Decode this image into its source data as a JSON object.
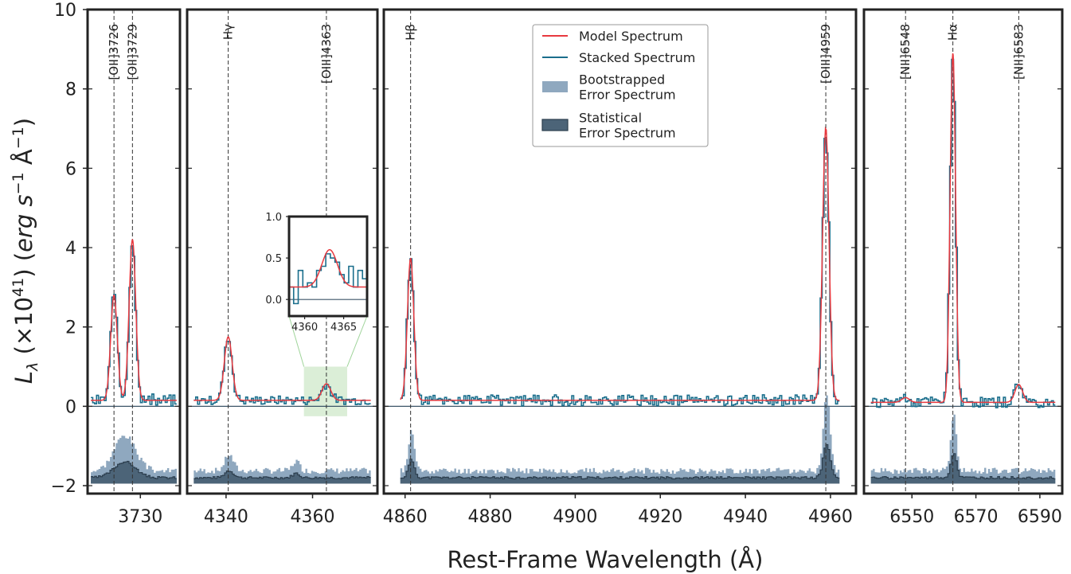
{
  "chart_data": {
    "type": "line",
    "ylabel": "L_λ (×10^41) (erg s^-1 Å^-1)",
    "ylabel_parts": {
      "main": "L",
      "sub": "λ",
      "mid": " (×10",
      "exp1": "41",
      "tail": ") (",
      "unit": "erg s",
      "exp2": "−1",
      "ang": " Å",
      "exp3": "−1",
      "close": ")"
    },
    "xlabel": "Rest-Frame Wavelength (Å)",
    "ylim": [
      -2.2,
      10
    ],
    "yticks": [
      -2,
      0,
      2,
      4,
      6,
      8,
      10
    ],
    "ytick_labels": [
      "−2",
      "0",
      "2",
      "4",
      "6",
      "8",
      "10"
    ],
    "colors": {
      "model": "#e8393f",
      "stacked": "#1a6e8c",
      "bootstrap": "#8fa8bf",
      "statistical": "#4c6478",
      "zero": "#3d5568",
      "frame": "#222222",
      "inset_region": "#cfe8c9"
    },
    "legend": [
      {
        "label_lines": [
          "Model Spectrum"
        ],
        "kind": "line",
        "color": "#e8393f"
      },
      {
        "label_lines": [
          "Stacked Spectrum"
        ],
        "kind": "line",
        "color": "#1a6e8c"
      },
      {
        "label_lines": [
          "Bootstrapped",
          "Error Spectrum"
        ],
        "kind": "patch",
        "color": "#8fa8bf"
      },
      {
        "label_lines": [
          "Statistical",
          "Error Spectrum"
        ],
        "kind": "patch",
        "color": "#4c6478"
      }
    ],
    "panels": [
      {
        "xlim": [
          3722,
          3736
        ],
        "xticks": [
          3730
        ],
        "lines": [
          {
            "label": "[OII]3726",
            "x": 3726.0
          },
          {
            "label": "[OII]3729",
            "x": 3728.8
          }
        ],
        "baseline": 0.15,
        "gaussians": [
          {
            "center": 3726.0,
            "amp": 2.65,
            "sigma": 0.5
          },
          {
            "center": 3728.8,
            "amp": 4.05,
            "sigma": 0.5
          }
        ],
        "noise": 0.2,
        "seed": 3,
        "err_peak": [
          {
            "center": 3727.5,
            "amp": 0.9,
            "sigma": 1.6
          }
        ]
      },
      {
        "xlim": [
          4331,
          4375
        ],
        "xticks": [
          4340,
          4360
        ],
        "lines": [
          {
            "label": "Hγ",
            "x": 4340.5
          },
          {
            "label": "[OIII]4363",
            "x": 4363.2
          }
        ],
        "baseline": 0.15,
        "gaussians": [
          {
            "center": 4340.5,
            "amp": 1.6,
            "sigma": 0.9
          },
          {
            "center": 4363.2,
            "amp": 0.42,
            "sigma": 1.0
          }
        ],
        "noise": 0.14,
        "seed": 7,
        "err_peak": [
          {
            "center": 4340.5,
            "amp": 0.4,
            "sigma": 1.0
          },
          {
            "center": 4356.0,
            "amp": 0.25,
            "sigma": 0.8
          }
        ],
        "inset_region": {
          "x": [
            4358,
            4368
          ],
          "y": [
            -0.25,
            1.0
          ]
        }
      },
      {
        "xlim": [
          4855,
          4966
        ],
        "xticks": [
          4860,
          4880,
          4900,
          4920,
          4940,
          4960
        ],
        "lines": [
          {
            "label": "Hβ",
            "x": 4861.3
          },
          {
            "label": "[OIII]4959",
            "x": 4958.9
          }
        ],
        "baseline": 0.15,
        "gaussians": [
          {
            "center": 4861.3,
            "amp": 3.6,
            "sigma": 0.75
          },
          {
            "center": 4958.9,
            "amp": 6.9,
            "sigma": 0.75
          }
        ],
        "noise": 0.17,
        "seed": 11,
        "err_peak": [
          {
            "center": 4861.3,
            "amp": 1.0,
            "sigma": 0.7
          },
          {
            "center": 4958.9,
            "amp": 1.9,
            "sigma": 0.8
          }
        ]
      },
      {
        "xlim": [
          6535,
          6597
        ],
        "xticks": [
          6550,
          6570,
          6590
        ],
        "lines": [
          {
            "label": "[NII]6548",
            "x": 6548.0
          },
          {
            "label": "Hα",
            "x": 6562.8
          },
          {
            "label": "[NII]6583",
            "x": 6583.4
          }
        ],
        "baseline": 0.1,
        "gaussians": [
          {
            "center": 6548.0,
            "amp": 0.12,
            "sigma": 1.2
          },
          {
            "center": 6562.8,
            "amp": 8.8,
            "sigma": 0.85
          },
          {
            "center": 6583.4,
            "amp": 0.45,
            "sigma": 1.2
          }
        ],
        "noise": 0.17,
        "seed": 19,
        "err_peak": [
          {
            "center": 6562.8,
            "amp": 1.4,
            "sigma": 0.9
          }
        ]
      }
    ],
    "inset": {
      "xlim": [
        4358,
        4368
      ],
      "ylim": [
        -0.2,
        1.0
      ],
      "xticks": [
        4360,
        4365
      ],
      "yticks": [
        0.0,
        0.5,
        1.0
      ],
      "ytick_labels": [
        "0.0",
        "0.5",
        "1.0"
      ],
      "baseline": 0.15,
      "gaussian": {
        "center": 4363.2,
        "amp": 0.45,
        "sigma": 1.0
      },
      "stacked": [
        0.15,
        -0.05,
        0.35,
        0.15,
        0.2,
        0.15,
        0.35,
        0.4,
        0.55,
        0.5,
        0.45,
        0.3,
        0.2,
        0.4,
        0.15,
        0.35,
        0.25
      ]
    }
  }
}
